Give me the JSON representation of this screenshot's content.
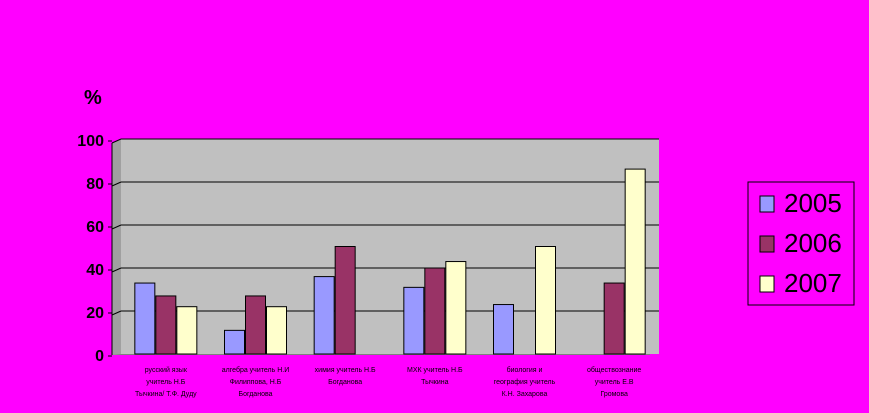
{
  "chart_data": {
    "type": "bar",
    "title": "",
    "xlabel": "",
    "ylabel": "%",
    "ylim": [
      0,
      100
    ],
    "yticks": [
      0,
      20,
      40,
      60,
      80,
      100
    ],
    "grid": true,
    "legend_position": "right",
    "categories": [
      [
        "русский язык",
        "учитель Н.Б",
        "Тычкина/ Т.Ф. Дуду"
      ],
      [
        "алгебра учитель Н.И",
        "Филиппова, Н.Б",
        "Богданова"
      ],
      [
        "химия учитель Н.Б",
        "Богданова"
      ],
      [
        "МХК учитель Н.Б",
        "Тычкина"
      ],
      [
        "биология и",
        "география учитель",
        "К.Н. Захарова"
      ],
      [
        "обществознание",
        "учитель Е.В",
        "Громова"
      ]
    ],
    "series": [
      {
        "name": "2005",
        "color": "#9999ff",
        "values": [
          33,
          11,
          36,
          31,
          23,
          null
        ]
      },
      {
        "name": "2006",
        "color": "#993366",
        "values": [
          27,
          27,
          50,
          40,
          null,
          33
        ]
      },
      {
        "name": "2007",
        "color": "#ffffcc",
        "values": [
          22,
          22,
          null,
          43,
          50,
          86
        ]
      }
    ],
    "colors": {
      "background": "#ff00ff",
      "plot_area": "#c0c0c0",
      "gridline": "#000000"
    }
  }
}
